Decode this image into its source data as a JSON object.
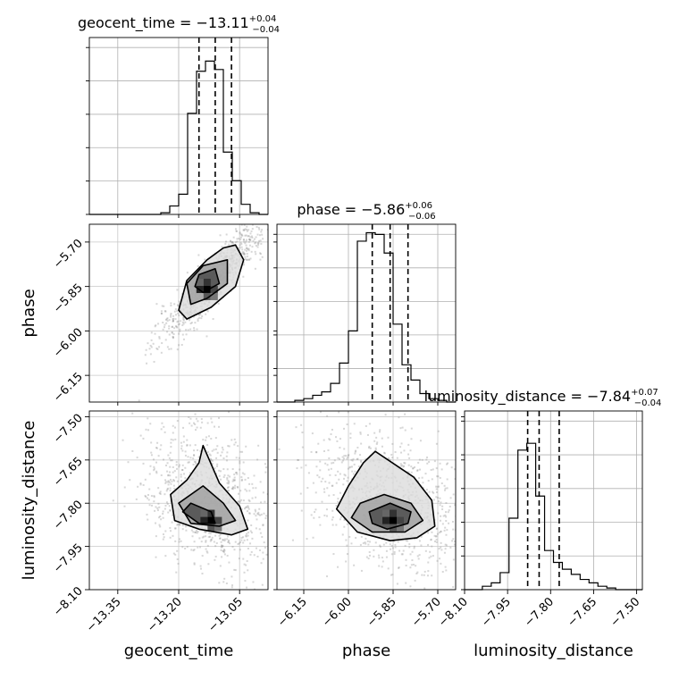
{
  "chart_data": {
    "type": "corner",
    "parameters": [
      {
        "key": "geocent_time",
        "label": "geocent_time",
        "title_prefix": "geocent_time = −13.11",
        "title_plus": "+0.04",
        "title_minus": "−0.04",
        "range": [
          -13.42,
          -12.98
        ],
        "ticks": [
          "−13.35",
          "−13.20",
          "−13.05"
        ],
        "tick_values": [
          -13.35,
          -13.2,
          -13.05
        ],
        "quantiles": [
          -13.15,
          -13.11,
          -13.07
        ],
        "hist": [
          0,
          0,
          0,
          0,
          0,
          0,
          0,
          0,
          0.01,
          0.05,
          0.12,
          0.6,
          0.85,
          0.91,
          0.86,
          0.37,
          0.2,
          0.06,
          0.01,
          0
        ]
      },
      {
        "key": "phase",
        "label": "phase",
        "title_prefix": "phase = −5.86",
        "title_plus": "+0.06",
        "title_minus": "−0.06",
        "range": [
          -6.24,
          -5.64
        ],
        "ticks": [
          "−6.15",
          "−6.00",
          "−5.85",
          "−5.70"
        ],
        "tick_values": [
          -6.15,
          -6.0,
          -5.85,
          -5.7
        ],
        "quantiles": [
          -5.92,
          -5.86,
          -5.8
        ],
        "hist": [
          0,
          0,
          0.01,
          0.02,
          0.04,
          0.06,
          0.11,
          0.23,
          0.42,
          0.95,
          1.0,
          0.99,
          0.88,
          0.46,
          0.22,
          0.13,
          0.05,
          0.02,
          0.01,
          0
        ]
      },
      {
        "key": "luminosity_distance",
        "label": "luminosity_distance",
        "title_prefix": "luminosity_distance = −7.84",
        "title_plus": "+0.07",
        "title_minus": "−0.04",
        "range": [
          -8.1,
          -7.48
        ],
        "ticks": [
          "−8.10",
          "−7.95",
          "−7.80",
          "−7.65",
          "−7.50"
        ],
        "tick_values": [
          -8.1,
          -7.95,
          -7.8,
          -7.65,
          -7.5
        ],
        "quantiles": [
          -7.88,
          -7.84,
          -7.77
        ],
        "hist": [
          0,
          0,
          0.02,
          0.04,
          0.1,
          0.42,
          0.82,
          0.86,
          0.55,
          0.23,
          0.16,
          0.12,
          0.09,
          0.06,
          0.04,
          0.02,
          0.01,
          0,
          0,
          0
        ]
      }
    ],
    "pairs": [
      {
        "x": "geocent_time",
        "y": "phase",
        "peak": [
          -13.13,
          -5.86
        ],
        "contours": [
          [
            [
              -13.06,
              -5.71
            ],
            [
              -13.04,
              -5.76
            ],
            [
              -13.06,
              -5.85
            ],
            [
              -13.12,
              -5.92
            ],
            [
              -13.18,
              -5.96
            ],
            [
              -13.2,
              -5.93
            ],
            [
              -13.18,
              -5.83
            ],
            [
              -13.13,
              -5.76
            ],
            [
              -13.09,
              -5.72
            ]
          ],
          [
            [
              -13.08,
              -5.76
            ],
            [
              -13.08,
              -5.84
            ],
            [
              -13.13,
              -5.89
            ],
            [
              -13.17,
              -5.91
            ],
            [
              -13.18,
              -5.84
            ],
            [
              -13.14,
              -5.78
            ]
          ],
          [
            [
              -13.11,
              -5.79
            ],
            [
              -13.1,
              -5.84
            ],
            [
              -13.14,
              -5.87
            ],
            [
              -13.16,
              -5.85
            ],
            [
              -13.15,
              -5.81
            ]
          ]
        ]
      },
      {
        "x": "geocent_time",
        "y": "luminosity_distance",
        "peak": [
          -13.12,
          -7.86
        ],
        "contours": [
          [
            [
              -13.14,
              -7.6
            ],
            [
              -13.1,
              -7.73
            ],
            [
              -13.05,
              -7.81
            ],
            [
              -13.03,
              -7.89
            ],
            [
              -13.07,
              -7.91
            ],
            [
              -13.15,
              -7.89
            ],
            [
              -13.21,
              -7.86
            ],
            [
              -13.22,
              -7.77
            ],
            [
              -13.18,
              -7.72
            ],
            [
              -13.15,
              -7.66
            ]
          ],
          [
            [
              -13.14,
              -7.74
            ],
            [
              -13.09,
              -7.8
            ],
            [
              -13.06,
              -7.86
            ],
            [
              -13.1,
              -7.88
            ],
            [
              -13.17,
              -7.87
            ],
            [
              -13.2,
              -7.8
            ]
          ],
          [
            [
              -13.17,
              -7.8
            ],
            [
              -13.12,
              -7.83
            ],
            [
              -13.11,
              -7.87
            ],
            [
              -13.15,
              -7.87
            ],
            [
              -13.19,
              -7.83
            ]
          ]
        ]
      },
      {
        "x": "phase",
        "y": "luminosity_distance",
        "peak": [
          -5.85,
          -7.86
        ],
        "contours": [
          [
            [
              -5.91,
              -7.62
            ],
            [
              -5.78,
              -7.71
            ],
            [
              -5.72,
              -7.79
            ],
            [
              -5.71,
              -7.88
            ],
            [
              -5.77,
              -7.92
            ],
            [
              -5.86,
              -7.93
            ],
            [
              -5.97,
              -7.9
            ],
            [
              -6.04,
              -7.82
            ],
            [
              -6.0,
              -7.74
            ],
            [
              -5.95,
              -7.66
            ]
          ],
          [
            [
              -5.96,
              -7.8
            ],
            [
              -5.88,
              -7.77
            ],
            [
              -5.79,
              -7.8
            ],
            [
              -5.75,
              -7.86
            ],
            [
              -5.81,
              -7.9
            ],
            [
              -5.92,
              -7.9
            ],
            [
              -5.99,
              -7.85
            ]
          ],
          [
            [
              -5.93,
              -7.83
            ],
            [
              -5.86,
              -7.8
            ],
            [
              -5.79,
              -7.83
            ],
            [
              -5.8,
              -7.87
            ],
            [
              -5.87,
              -7.89
            ],
            [
              -5.92,
              -7.87
            ]
          ]
        ]
      }
    ],
    "grid": true,
    "quantile_line_style": "dashed"
  }
}
